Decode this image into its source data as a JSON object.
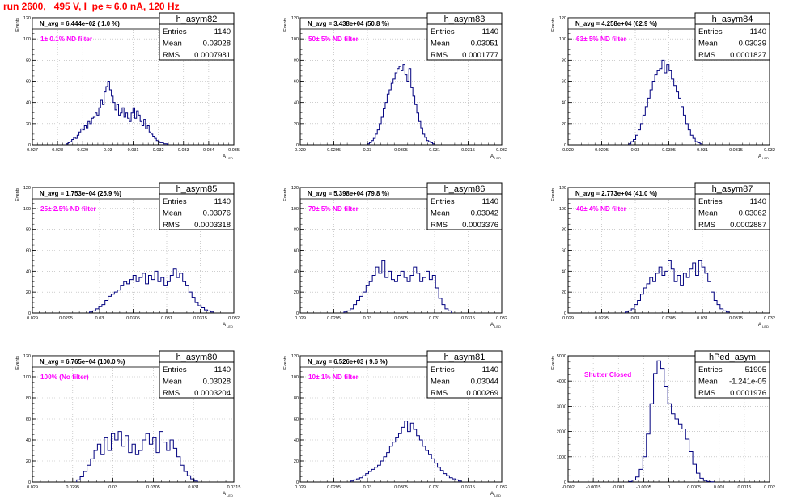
{
  "page_title": "run 2600,   495 V, I_pe ≈ 6.0 nA, 120 Hz",
  "colors": {
    "histogram": "#00007f",
    "filter_label": "#ff00ff",
    "title": "#ff0000",
    "grid": "#b0b0b0"
  },
  "chart_data": [
    {
      "type": "histogram",
      "name": "h_asym82",
      "ylabel": "Events",
      "xlabel": "A_LED",
      "avg_label": "N_avg = 6.444e+02 ( 1.0 %)",
      "filter_label": "1± 0.1% ND filter",
      "stats": {
        "Entries": "1140",
        "Mean": "0.03028",
        "RMS": "0.0007981"
      },
      "xlim": [
        0.027,
        0.035
      ],
      "ylim": [
        0,
        120
      ],
      "xticks": [
        "0.027",
        "0.028",
        "0.029",
        "0.03",
        "0.031",
        "0.032",
        "0.033",
        "0.034",
        "0.035"
      ],
      "yticks": [
        "0",
        "20",
        "40",
        "60",
        "80",
        "100",
        "120"
      ],
      "bin_range": [
        0.02835,
        0.03235
      ],
      "values": [
        1,
        2,
        3,
        5,
        7,
        6,
        9,
        12,
        15,
        14,
        18,
        16,
        22,
        20,
        25,
        26,
        30,
        28,
        35,
        42,
        38,
        50,
        55,
        60,
        52,
        46,
        40,
        33,
        38,
        28,
        30,
        35,
        26,
        30,
        25,
        22,
        30,
        35,
        25,
        32,
        28,
        22,
        18,
        24,
        15,
        18,
        12,
        10,
        8,
        6,
        4,
        3,
        2,
        2,
        1,
        1
      ]
    },
    {
      "type": "histogram",
      "name": "h_asym83",
      "ylabel": "Events",
      "xlabel": "A_LED",
      "avg_label": "N_avg = 3.438e+04 (50.8 %)",
      "filter_label": "50± 5% ND filter",
      "stats": {
        "Entries": "1140",
        "Mean": "0.03051",
        "RMS": "0.0001777"
      },
      "xlim": [
        0.029,
        0.032
      ],
      "ylim": [
        0,
        120
      ],
      "xticks": [
        "0.029",
        "0.0295",
        "0.03",
        "0.0305",
        "0.031",
        "0.0315",
        "0.032"
      ],
      "yticks": [
        "0",
        "20",
        "40",
        "60",
        "80",
        "100",
        "120"
      ],
      "bin_range": [
        0.03,
        0.031
      ],
      "values": [
        1,
        2,
        4,
        6,
        10,
        14,
        20,
        26,
        34,
        40,
        48,
        52,
        58,
        62,
        68,
        72,
        74,
        70,
        76,
        66,
        60,
        72,
        54,
        46,
        38,
        30,
        22,
        16,
        10,
        7,
        4,
        3,
        2,
        1
      ]
    },
    {
      "type": "histogram",
      "name": "h_asym84",
      "ylabel": "Events",
      "xlabel": "A_LED",
      "avg_label": "N_avg = 4.258e+04 (62.9 %)",
      "filter_label": "63± 5% ND filter",
      "stats": {
        "Entries": "1140",
        "Mean": "0.03039",
        "RMS": "0.0001827"
      },
      "xlim": [
        0.029,
        0.032
      ],
      "ylim": [
        0,
        120
      ],
      "xticks": [
        "0.029",
        "0.0295",
        "0.03",
        "0.0305",
        "0.031",
        "0.0315",
        "0.032"
      ],
      "yticks": [
        "0",
        "20",
        "40",
        "60",
        "80",
        "100",
        "120"
      ],
      "bin_range": [
        0.0299,
        0.031
      ],
      "values": [
        1,
        3,
        5,
        9,
        14,
        20,
        28,
        36,
        44,
        52,
        60,
        66,
        70,
        72,
        80,
        68,
        76,
        70,
        62,
        56,
        50,
        44,
        36,
        28,
        20,
        14,
        9,
        6,
        3,
        2,
        1
      ]
    },
    {
      "type": "histogram",
      "name": "h_asym85",
      "ylabel": "Events",
      "xlabel": "A_LED",
      "avg_label": "N_avg = 1.753e+04 (25.9 %)",
      "filter_label": "25± 2.5% ND filter",
      "stats": {
        "Entries": "1140",
        "Mean": "0.03076",
        "RMS": "0.0003318"
      },
      "xlim": [
        0.029,
        0.032
      ],
      "ylim": [
        0,
        120
      ],
      "xticks": [
        "0.029",
        "0.0295",
        "0.03",
        "0.0305",
        "0.031",
        "0.0315",
        "0.032"
      ],
      "yticks": [
        "0",
        "20",
        "40",
        "60",
        "80",
        "100",
        "120"
      ],
      "bin_range": [
        0.02985,
        0.0317
      ],
      "values": [
        1,
        2,
        4,
        6,
        8,
        12,
        16,
        18,
        20,
        22,
        26,
        30,
        28,
        32,
        36,
        30,
        34,
        38,
        28,
        36,
        32,
        40,
        30,
        34,
        26,
        30,
        36,
        42,
        34,
        38,
        30,
        26,
        20,
        15,
        10,
        7,
        5,
        3,
        2,
        1
      ]
    },
    {
      "type": "histogram",
      "name": "h_asym86",
      "ylabel": "Events",
      "xlabel": "A_LED",
      "avg_label": "N_avg = 5.398e+04 (79.8 %)",
      "filter_label": "79± 5% ND filter",
      "stats": {
        "Entries": "1140",
        "Mean": "0.03042",
        "RMS": "0.0003376"
      },
      "xlim": [
        0.029,
        0.032
      ],
      "ylim": [
        0,
        120
      ],
      "xticks": [
        "0.029",
        "0.0295",
        "0.03",
        "0.0305",
        "0.031",
        "0.0315",
        "0.032"
      ],
      "yticks": [
        "0",
        "20",
        "40",
        "60",
        "80",
        "100",
        "120"
      ],
      "bin_range": [
        0.02965,
        0.03125
      ],
      "values": [
        1,
        2,
        4,
        8,
        12,
        16,
        20,
        26,
        30,
        36,
        44,
        38,
        50,
        34,
        40,
        32,
        30,
        36,
        40,
        34,
        30,
        36,
        44,
        38,
        30,
        34,
        40,
        32,
        36,
        24,
        14,
        8,
        4,
        2
      ]
    },
    {
      "type": "histogram",
      "name": "h_asym87",
      "ylabel": "Events",
      "xlabel": "A_LED",
      "avg_label": "N_avg = 2.773e+04 (41.0 %)",
      "filter_label": "40± 4% ND filter",
      "stats": {
        "Entries": "1140",
        "Mean": "0.03062",
        "RMS": "0.0002887"
      },
      "xlim": [
        0.029,
        0.032
      ],
      "ylim": [
        0,
        120
      ],
      "xticks": [
        "0.029",
        "0.0295",
        "0.03",
        "0.0305",
        "0.031",
        "0.0315",
        "0.032"
      ],
      "yticks": [
        "0",
        "20",
        "40",
        "60",
        "80",
        "100",
        "120"
      ],
      "bin_range": [
        0.02985,
        0.0314
      ],
      "values": [
        1,
        2,
        4,
        8,
        12,
        18,
        24,
        28,
        34,
        30,
        38,
        44,
        36,
        40,
        50,
        42,
        30,
        36,
        26,
        38,
        34,
        42,
        48,
        36,
        50,
        44,
        38,
        30,
        20,
        12,
        8,
        4,
        2,
        1
      ]
    },
    {
      "type": "histogram",
      "name": "h_asym80",
      "ylabel": "Events",
      "xlabel": "A_LED",
      "avg_label": "N_avg = 6.765e+04 (100.0 %)",
      "filter_label": "100% (No filter)",
      "stats": {
        "Entries": "1140",
        "Mean": "0.03028",
        "RMS": "0.0003204"
      },
      "xlim": [
        0.029,
        0.0315
      ],
      "ylim": [
        0,
        120
      ],
      "xticks": [
        "0.029",
        "0.0295",
        "0.03",
        "0.0305",
        "0.031",
        "0.0315"
      ],
      "yticks": [
        "0",
        "20",
        "40",
        "60",
        "80",
        "100",
        "120"
      ],
      "bin_range": [
        0.02955,
        0.03105
      ],
      "values": [
        2,
        5,
        10,
        16,
        22,
        30,
        36,
        26,
        42,
        30,
        46,
        40,
        48,
        34,
        44,
        28,
        36,
        26,
        30,
        40,
        46,
        36,
        42,
        28,
        48,
        38,
        30,
        40,
        32,
        24,
        16,
        10,
        6,
        3,
        1
      ]
    },
    {
      "type": "histogram",
      "name": "h_asym81",
      "ylabel": "Events",
      "xlabel": "A_LED",
      "avg_label": "N_avg = 6.526e+03 ( 9.6 %)",
      "filter_label": "10± 1% ND filter",
      "stats": {
        "Entries": "1140",
        "Mean": "0.03044",
        "RMS": "0.000269"
      },
      "xlim": [
        0.029,
        0.032
      ],
      "ylim": [
        0,
        120
      ],
      "xticks": [
        "0.029",
        "0.0295",
        "0.03",
        "0.0305",
        "0.031",
        "0.0315",
        "0.032"
      ],
      "yticks": [
        "0",
        "20",
        "40",
        "60",
        "80",
        "100",
        "120"
      ],
      "bin_range": [
        0.02975,
        0.0314
      ],
      "values": [
        1,
        2,
        3,
        4,
        6,
        8,
        10,
        12,
        14,
        16,
        20,
        24,
        28,
        34,
        38,
        42,
        46,
        52,
        58,
        48,
        56,
        50,
        44,
        40,
        34,
        30,
        26,
        22,
        18,
        14,
        11,
        8,
        6,
        4,
        3,
        2,
        1
      ]
    },
    {
      "type": "histogram",
      "name": "hPed_asym",
      "ylabel": "Events",
      "xlabel": "",
      "avg_label": "",
      "filter_label": "Shutter Closed",
      "stats": {
        "Entries": "51905",
        "Mean": "-1.241e-05",
        "RMS": "0.0001976"
      },
      "xlim": [
        -0.002,
        0.002
      ],
      "ylim": [
        0,
        5000
      ],
      "xticks": [
        "-0.002",
        "-0.0015",
        "-0.001",
        "-0.0005",
        "0",
        "0.0005",
        "0.001",
        "0.0015",
        "0.002"
      ],
      "yticks": [
        "0",
        "1000",
        "2000",
        "3000",
        "4000",
        "5000"
      ],
      "bin_range": [
        -0.0008,
        0.0009
      ],
      "values": [
        20,
        80,
        200,
        500,
        1000,
        1900,
        3100,
        4300,
        4800,
        4500,
        3800,
        3100,
        2700,
        2500,
        2300,
        2100,
        1700,
        1200,
        700,
        350,
        150,
        60,
        20,
        10
      ]
    }
  ]
}
